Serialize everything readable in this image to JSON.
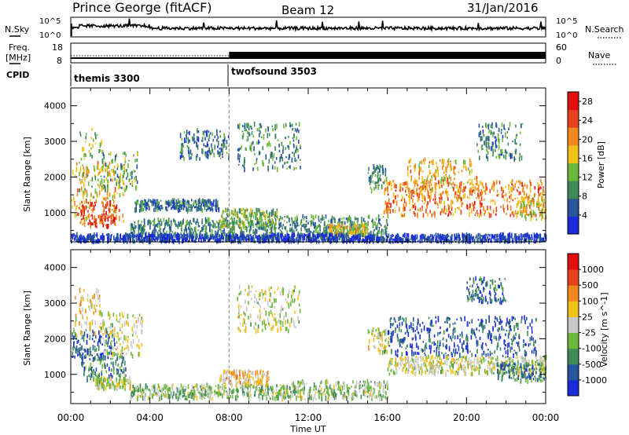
{
  "header": {
    "station": "Prince George (fitACF)",
    "beam": "Beam 12",
    "date": "31/Jan/2016"
  },
  "noise_panel": {
    "left_label": "N.Sky",
    "right_label": "N.Search",
    "left_ticks": [
      "10^5",
      "10^0"
    ],
    "right_ticks": [
      "10^5",
      "10^0"
    ]
  },
  "freq_panel": {
    "left_label_1": "Freq.",
    "left_label_2": "[MHz]",
    "right_label": "Nave",
    "left_ticks": [
      "18",
      "8"
    ],
    "right_ticks": [
      "60",
      "0"
    ]
  },
  "cpid": {
    "label": "CPID",
    "modes": [
      {
        "name": "themis 3300",
        "start_hour": 0
      },
      {
        "name": "twofsound 3503",
        "start_hour": 8
      }
    ]
  },
  "chart_data": [
    {
      "type": "heatmap",
      "name": "power",
      "ylabel": "Slant Range [km]",
      "xlabel": "",
      "xlim": [
        0,
        24
      ],
      "ylim": [
        180,
        4500
      ],
      "yticks": [
        "1000",
        "2000",
        "3000",
        "4000"
      ],
      "colorbar": {
        "label": "Power [dB]",
        "ticks": [
          "4",
          "8",
          "12",
          "16",
          "20",
          "24",
          "28"
        ],
        "range": [
          0,
          30
        ],
        "colors": [
          "#1a2cd9",
          "#27569c",
          "#3e8a58",
          "#6bb83a",
          "#f2c018",
          "#f08a1e",
          "#e8431e",
          "#e01010"
        ]
      },
      "regions": [
        {
          "t0": 0.0,
          "t1": 2.7,
          "r0": 700,
          "r1": 2400,
          "level": 0.62
        },
        {
          "t0": 0.4,
          "t1": 1.6,
          "r0": 1500,
          "r1": 3400,
          "level": 0.45
        },
        {
          "t0": 1.5,
          "t1": 3.4,
          "r0": 1600,
          "r1": 2700,
          "level": 0.38
        },
        {
          "t0": 0.3,
          "t1": 2.3,
          "r0": 600,
          "r1": 1300,
          "level": 0.82
        },
        {
          "t0": 3.2,
          "t1": 7.5,
          "r0": 1050,
          "r1": 1350,
          "level": 0.22
        },
        {
          "t0": 3.0,
          "t1": 10.5,
          "r0": 300,
          "r1": 800,
          "level": 0.3
        },
        {
          "t0": 7.5,
          "t1": 10.5,
          "r0": 600,
          "r1": 1100,
          "level": 0.42
        },
        {
          "t0": 5.5,
          "t1": 8.0,
          "r0": 2500,
          "r1": 3300,
          "level": 0.25
        },
        {
          "t0": 8.4,
          "t1": 11.6,
          "r0": 2200,
          "r1": 3500,
          "level": 0.3
        },
        {
          "t0": 10.5,
          "t1": 16.0,
          "r0": 350,
          "r1": 900,
          "level": 0.3
        },
        {
          "t0": 13.0,
          "t1": 15.0,
          "r0": 350,
          "r1": 650,
          "level": 0.55
        },
        {
          "t0": 15.0,
          "t1": 16.0,
          "r0": 1600,
          "r1": 2300,
          "level": 0.32
        },
        {
          "t0": 15.8,
          "t1": 23.9,
          "r0": 900,
          "r1": 1900,
          "level": 0.72
        },
        {
          "t0": 17.0,
          "t1": 20.5,
          "r0": 1400,
          "r1": 2500,
          "level": 0.62
        },
        {
          "t0": 20.5,
          "t1": 22.8,
          "r0": 2500,
          "r1": 3500,
          "level": 0.28
        },
        {
          "t0": 22.5,
          "t1": 24.0,
          "r0": 800,
          "r1": 1400,
          "level": 0.55
        },
        {
          "t0": 0.0,
          "t1": 24.0,
          "r0": 180,
          "r1": 380,
          "level": 0.1
        }
      ]
    },
    {
      "type": "heatmap",
      "name": "velocity",
      "ylabel": "Slant Range [km]",
      "xlabel": "Time UT",
      "xlim": [
        0,
        24
      ],
      "ylim": [
        180,
        4500
      ],
      "xticks": [
        "00:00",
        "04:00",
        "08:00",
        "12:00",
        "16:00",
        "20:00",
        "00:00"
      ],
      "yticks": [
        "1000",
        "2000",
        "3000",
        "4000"
      ],
      "colorbar": {
        "label": "Velocity [m s^-1]",
        "ticks": [
          "1000",
          "500",
          "100",
          "25",
          "-25",
          "-100",
          "-500",
          "-1000"
        ],
        "range": [
          -1000,
          1000
        ],
        "colors": [
          "#1a2cd9",
          "#27569c",
          "#3e8a58",
          "#6bb83a",
          "#c8c8c8",
          "#f2c018",
          "#f08a1e",
          "#e8431e",
          "#e01010"
        ]
      },
      "regions": [
        {
          "t0": 0.0,
          "t1": 2.2,
          "r0": 1400,
          "r1": 2300,
          "level": 0.18
        },
        {
          "t0": 0.5,
          "t1": 2.8,
          "r0": 800,
          "r1": 1600,
          "level": 0.25
        },
        {
          "t0": 0.2,
          "t1": 1.5,
          "r0": 2000,
          "r1": 3400,
          "level": 0.6
        },
        {
          "t0": 1.5,
          "t1": 3.6,
          "r0": 1500,
          "r1": 2700,
          "level": 0.5
        },
        {
          "t0": 1.2,
          "t1": 3.0,
          "r0": 600,
          "r1": 900,
          "level": 0.5
        },
        {
          "t0": 3.0,
          "t1": 11.0,
          "r0": 300,
          "r1": 700,
          "level": 0.42
        },
        {
          "t0": 7.5,
          "t1": 10.0,
          "r0": 700,
          "r1": 1100,
          "level": 0.62
        },
        {
          "t0": 8.4,
          "t1": 11.6,
          "r0": 2200,
          "r1": 3500,
          "level": 0.5
        },
        {
          "t0": 11.0,
          "t1": 16.0,
          "r0": 300,
          "r1": 800,
          "level": 0.42
        },
        {
          "t0": 15.0,
          "t1": 16.2,
          "r0": 1600,
          "r1": 2300,
          "level": 0.5
        },
        {
          "t0": 16.0,
          "t1": 23.5,
          "r0": 1500,
          "r1": 2600,
          "level": 0.15
        },
        {
          "t0": 16.0,
          "t1": 24.0,
          "r0": 1000,
          "r1": 1500,
          "level": 0.5
        },
        {
          "t0": 21.5,
          "t1": 24.0,
          "r0": 800,
          "r1": 1300,
          "level": 0.25
        },
        {
          "t0": 20.0,
          "t1": 22.0,
          "r0": 3000,
          "r1": 3700,
          "level": 0.2
        }
      ]
    }
  ]
}
